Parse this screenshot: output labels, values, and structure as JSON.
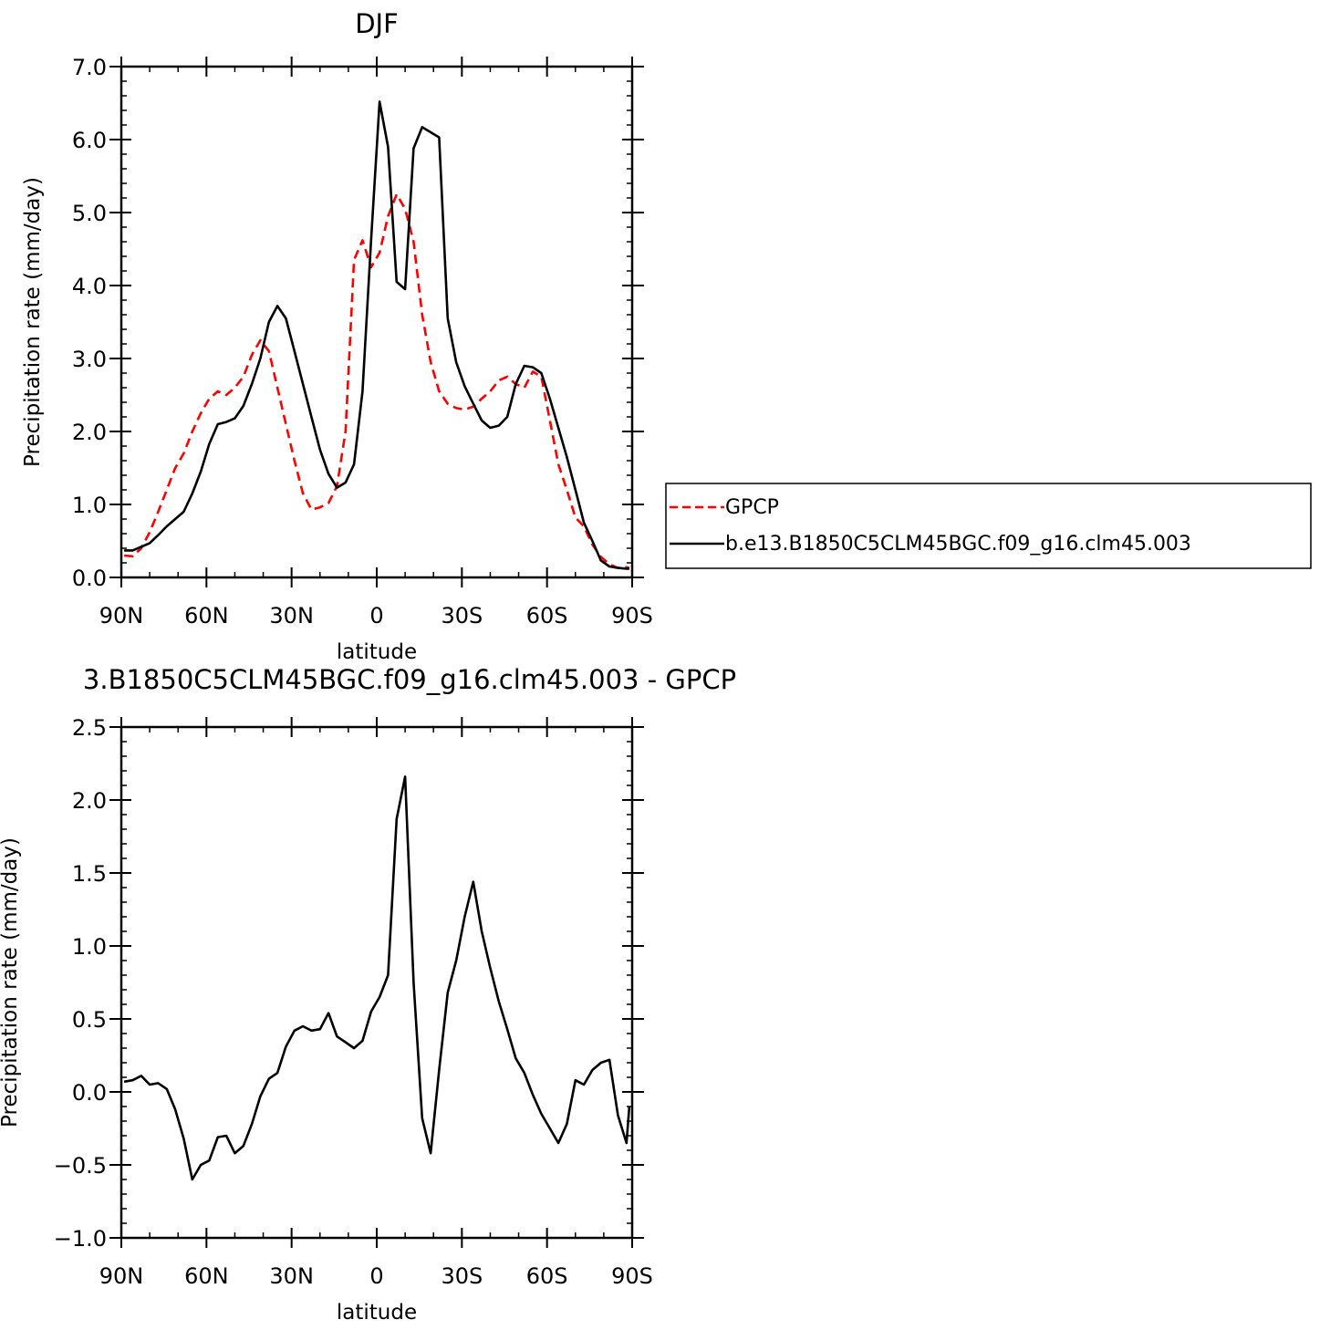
{
  "chart_data": [
    {
      "type": "line",
      "title": "DJF",
      "xlabel": "latitude",
      "ylabel": "Precipitation rate (mm/day)",
      "xlim": [
        90,
        -90
      ],
      "ylim": [
        0,
        7
      ],
      "xticks": [
        90,
        60,
        30,
        0,
        -30,
        -60,
        -90
      ],
      "xtick_labels": [
        "90N",
        "60N",
        "30N",
        "0",
        "30S",
        "60S",
        "90S"
      ],
      "yticks": [
        0,
        1,
        2,
        3,
        4,
        5,
        6,
        7
      ],
      "ytick_labels": [
        "0.0",
        "1.0",
        "2.0",
        "3.0",
        "4.0",
        "5.0",
        "6.0",
        "7.0"
      ],
      "legend": "right, outside",
      "series": [
        {
          "name": "GPCP",
          "color": "#ff0000",
          "style": "dashed",
          "x": [
            89,
            86,
            83,
            80,
            77,
            74,
            71,
            68,
            65,
            62,
            59,
            56,
            53,
            50,
            47,
            44,
            41,
            38,
            35,
            32,
            29,
            26,
            23,
            20,
            17,
            14,
            11,
            8,
            5,
            2,
            -1,
            -4,
            -7,
            -10,
            -13,
            -16,
            -19,
            -22,
            -25,
            -28,
            -31,
            -34,
            -37,
            -40,
            -43,
            -46,
            -49,
            -52,
            -55,
            -58,
            -61,
            -64,
            -67,
            -70,
            -73,
            -76,
            -79,
            -82,
            -85,
            -88,
            -89
          ],
          "y": [
            0.3,
            0.29,
            0.4,
            0.62,
            0.9,
            1.2,
            1.5,
            1.7,
            2.0,
            2.25,
            2.45,
            2.55,
            2.5,
            2.6,
            2.75,
            3.05,
            3.25,
            3.1,
            2.6,
            2.1,
            1.6,
            1.15,
            0.93,
            0.96,
            1.02,
            1.25,
            2.0,
            4.35,
            4.62,
            4.25,
            4.45,
            4.95,
            5.25,
            5.05,
            4.6,
            3.6,
            2.95,
            2.55,
            2.38,
            2.32,
            2.3,
            2.34,
            2.45,
            2.55,
            2.7,
            2.75,
            2.65,
            2.6,
            2.82,
            2.75,
            2.15,
            1.55,
            1.2,
            0.82,
            0.7,
            0.45,
            0.28,
            0.18,
            0.13,
            0.14,
            0.13
          ]
        },
        {
          "name": "b.e13.B1850C5CLM45BGC.f09_g16.clm45.003",
          "color": "#000000",
          "style": "solid",
          "x": [
            89,
            86,
            83,
            80,
            77,
            74,
            71,
            68,
            65,
            62,
            59,
            56,
            53,
            50,
            47,
            44,
            41,
            38,
            35,
            32,
            29,
            26,
            23,
            20,
            17,
            14,
            11,
            8,
            5,
            2,
            -1,
            -4,
            -7,
            -10,
            -13,
            -16,
            -19,
            -22,
            -25,
            -28,
            -31,
            -34,
            -37,
            -40,
            -43,
            -46,
            -49,
            -52,
            -55,
            -58,
            -61,
            -64,
            -67,
            -70,
            -73,
            -76,
            -79,
            -82,
            -85,
            -88,
            -89
          ],
          "y": [
            0.37,
            0.37,
            0.42,
            0.47,
            0.58,
            0.7,
            0.8,
            0.9,
            1.15,
            1.45,
            1.83,
            2.1,
            2.13,
            2.18,
            2.35,
            2.65,
            3.0,
            3.5,
            3.72,
            3.55,
            3.1,
            2.65,
            2.2,
            1.75,
            1.42,
            1.23,
            1.3,
            1.55,
            2.55,
            4.62,
            6.52,
            5.9,
            4.05,
            3.95,
            5.88,
            6.17,
            6.1,
            6.03,
            3.55,
            2.95,
            2.62,
            2.38,
            2.15,
            2.05,
            2.08,
            2.2,
            2.65,
            2.9,
            2.88,
            2.8,
            2.45,
            2.05,
            1.65,
            1.2,
            0.75,
            0.5,
            0.23,
            0.15,
            0.13,
            0.12,
            0.12
          ]
        }
      ]
    },
    {
      "type": "line",
      "title": "3.B1850C5CLM45BGC.f09_g16.clm45.003 - GPCP",
      "xlabel": "latitude",
      "ylabel": "Precipitation rate (mm/day)",
      "xlim": [
        90,
        -90
      ],
      "ylim": [
        -1,
        2.5
      ],
      "xticks": [
        90,
        60,
        30,
        0,
        -30,
        -60,
        -90
      ],
      "xtick_labels": [
        "90N",
        "60N",
        "30N",
        "0",
        "30S",
        "60S",
        "90S"
      ],
      "yticks": [
        -1,
        -0.5,
        0,
        0.5,
        1,
        1.5,
        2,
        2.5
      ],
      "ytick_labels": [
        "−1.0",
        "−0.5",
        "0.0",
        "0.5",
        "1.0",
        "1.5",
        "2.0",
        "2.5"
      ],
      "series": [
        {
          "color": "#000000",
          "style": "solid",
          "x": [
            89,
            86,
            83,
            80,
            77,
            74,
            71,
            68,
            65,
            62,
            59,
            56,
            53,
            50,
            47,
            44,
            41,
            38,
            35,
            32,
            29,
            26,
            23,
            20,
            17,
            14,
            11,
            8,
            5,
            2,
            -1,
            -4,
            -7,
            -10,
            -13,
            -16,
            -19,
            -22,
            -25,
            -28,
            -31,
            -34,
            -37,
            -40,
            -43,
            -46,
            -49,
            -52,
            -55,
            -58,
            -61,
            -64,
            -67,
            -70,
            -73,
            -76,
            -79,
            -82,
            -85,
            -88,
            -89
          ],
          "y": [
            0.07,
            0.08,
            0.11,
            0.05,
            0.06,
            0.02,
            -0.12,
            -0.32,
            -0.6,
            -0.5,
            -0.47,
            -0.31,
            -0.3,
            -0.42,
            -0.37,
            -0.22,
            -0.03,
            0.09,
            0.13,
            0.31,
            0.42,
            0.45,
            0.42,
            0.43,
            0.54,
            0.38,
            0.34,
            0.3,
            0.35,
            0.55,
            0.65,
            0.8,
            1.87,
            2.16,
            0.75,
            -0.18,
            -0.42,
            0.15,
            0.68,
            0.9,
            1.2,
            1.44,
            1.1,
            0.85,
            0.62,
            0.43,
            0.23,
            0.13,
            -0.02,
            -0.15,
            -0.25,
            -0.35,
            -0.22,
            0.08,
            0.05,
            0.15,
            0.2,
            0.22,
            -0.16,
            -0.35,
            -0.1
          ]
        }
      ]
    }
  ]
}
